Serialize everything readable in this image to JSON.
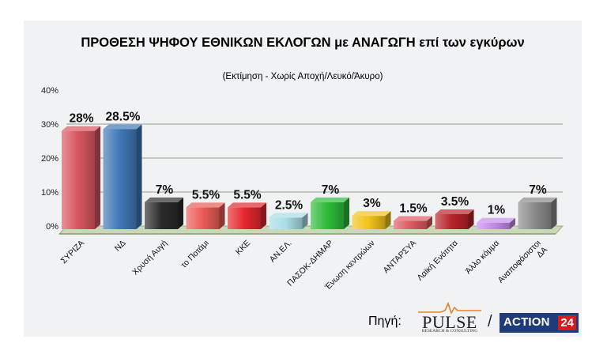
{
  "title": "ΠΡΟΘΕΣΗ ΨΗΦΟΥ ΕΘΝΙΚΩΝ ΕΚΛΟΓΩΝ με ΑΝΑΓΩΓΗ επί των εγκύρων",
  "subtitle": "(Εκτίμηση  -  Χωρίς Αποχή/Λευκό/Άκυρο)",
  "chart_data": {
    "type": "bar",
    "title": "ΠΡΟΘΕΣΗ ΨΗΦΟΥ ΕΘΝΙΚΩΝ ΕΚΛΟΓΩΝ με ΑΝΑΓΩΓΗ επί των εγκύρων",
    "subtitle": "(Εκτίμηση  -  Χωρίς Αποχή/Λευκό/Άκυρο)",
    "xlabel": "",
    "ylabel": "",
    "ylim": [
      0,
      40
    ],
    "yticks": [
      "0%",
      "10%",
      "20%",
      "30%",
      "40%"
    ],
    "grid": true,
    "legend": "none",
    "categories": [
      [
        "ΣΥΡΙΖΑ"
      ],
      [
        "ΝΔ"
      ],
      [
        "Χρυσή Αυγή"
      ],
      [
        "το Ποτάμι"
      ],
      [
        "ΚΚΕ"
      ],
      [
        "ΑΝ.ΕΛ."
      ],
      [
        "ΠΑΣΟΚ-ΔΗΜΑΡ"
      ],
      [
        "Ένωση κεντρώων"
      ],
      [
        "ΑΝΤΑΡΣΥΑ"
      ],
      [
        "Λαϊκή Ενότητα"
      ],
      [
        "Άλλο κόμμα"
      ],
      [
        "Αναποφάσιστοι",
        "ΔΑ"
      ]
    ],
    "values": [
      28,
      28.5,
      7,
      5.5,
      5.5,
      2.5,
      7,
      3,
      1.5,
      3.5,
      1,
      7
    ],
    "value_labels": [
      "28%",
      "28.5%",
      "7%",
      "5.5%",
      "5.5%",
      "2.5%",
      "7%",
      "3%",
      "1.5%",
      "3.5%",
      "1%",
      "7%"
    ],
    "colors": [
      "#d9555f",
      "#3f78b7",
      "#2b2b2b",
      "#ea5c55",
      "#e5272d",
      "#a9dde6",
      "#2dbb3a",
      "#f0c318",
      "#df5a62",
      "#b8232b",
      "#c48ce8",
      "#8a8a8a"
    ]
  },
  "source": {
    "label": "Πηγή:",
    "logo1_word": "PULSE",
    "logo1_sub": "RESEARCH & CONSULTING",
    "separator": "/",
    "logo2_word": "ACTION",
    "logo2_number": "24"
  }
}
